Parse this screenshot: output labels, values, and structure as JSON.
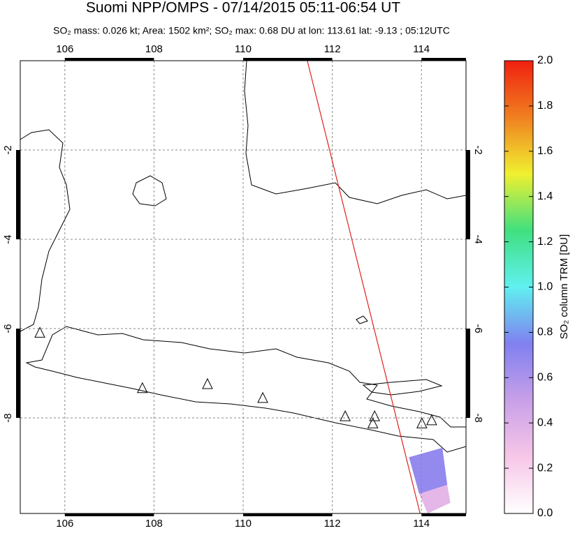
{
  "title": "Suomi NPP/OMPS - 07/14/2015 05:11-06:54 UT",
  "subtitle": "SO₂ mass: 0.026 kt; Area: 1502 km²; SO₂ max: 0.68 DU at lon: 113.61 lat: -9.13 ; 05:12UTC",
  "map": {
    "lonlim": [
      105,
      115
    ],
    "latlim": [
      -10.14,
      0
    ],
    "lonticks": [
      106,
      108,
      110,
      112,
      114
    ],
    "latticks": [
      -2,
      -4,
      -6,
      -8
    ],
    "grid": true,
    "track": {
      "lon": [
        111.44,
        113.97
      ],
      "lat": [
        0,
        -10.14
      ],
      "color": "#e02020"
    },
    "volcanoes": [
      {
        "lon": 105.44,
        "lat": -6.1
      },
      {
        "lon": 107.74,
        "lat": -7.34
      },
      {
        "lon": 109.2,
        "lat": -7.25
      },
      {
        "lon": 110.44,
        "lat": -7.56
      },
      {
        "lon": 112.29,
        "lat": -7.97
      },
      {
        "lon": 112.95,
        "lat": -7.97
      },
      {
        "lon": 112.91,
        "lat": -8.13
      },
      {
        "lon": 114.01,
        "lat": -8.13
      },
      {
        "lon": 114.23,
        "lat": -8.06
      }
    ],
    "pixels": [
      {
        "lon": [
          113.72,
          114.47,
          114.58,
          113.95
        ],
        "lat": [
          -8.88,
          -8.67,
          -9.5,
          -9.7
        ],
        "value": 0.68
      },
      {
        "lon": [
          113.95,
          114.58,
          114.65,
          114.14
        ],
        "lat": [
          -9.7,
          -9.5,
          -9.9,
          -10.14
        ],
        "value": 0.35
      }
    ]
  },
  "colorbar": {
    "label": "SO₂ column TRM [DU]",
    "ylim": [
      0,
      2
    ],
    "colors": [
      "#ffffff",
      "#f7c6e8",
      "#c8a0e8",
      "#8080f0",
      "#60f0f0",
      "#40e080",
      "#f0f030",
      "#f08020",
      "#f02010"
    ],
    "ticks": [
      {
        "value": 0,
        "label": "0.0"
      },
      {
        "value": 0.2,
        "label": "0.2"
      },
      {
        "value": 0.4,
        "label": "0.4"
      },
      {
        "value": 0.6,
        "label": "0.6"
      },
      {
        "value": 0.8,
        "label": "0.8"
      },
      {
        "value": 1,
        "label": "1.0"
      },
      {
        "value": 1.2,
        "label": "1.2"
      },
      {
        "value": 1.4,
        "label": "1.4"
      },
      {
        "value": 1.6,
        "label": "1.6"
      },
      {
        "value": 1.8,
        "label": "1.8"
      },
      {
        "value": 2,
        "label": "2.0"
      }
    ]
  }
}
